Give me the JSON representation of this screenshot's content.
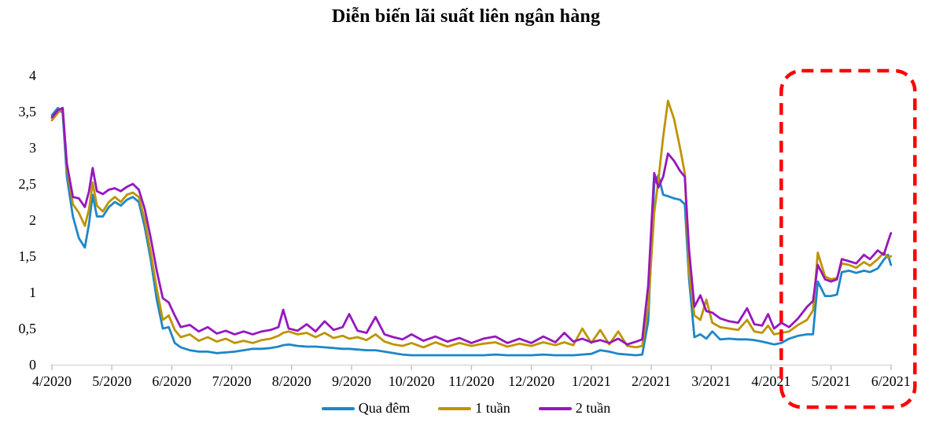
{
  "chart_data": {
    "type": "line",
    "title": "Diễn biến lãi suất liên ngân hàng",
    "xlabel": "",
    "ylabel": "",
    "ylim": [
      0,
      4
    ],
    "grid": "off",
    "legend_position": "bottom",
    "categories": [
      "4/2020",
      "5/2020",
      "6/2020",
      "7/2020",
      "8/2020",
      "9/2020",
      "10/2020",
      "11/2020",
      "12/2020",
      "1/2021",
      "2/2021",
      "3/2021",
      "4/2021",
      "5/2021",
      "6/2021"
    ],
    "ytick_values": [
      0,
      0.5,
      1,
      1.5,
      2,
      2.5,
      3,
      3.5,
      4
    ],
    "ytick_labels": [
      "0",
      "0,5",
      "1",
      "1,5",
      "2",
      "2,5",
      "3",
      "3,5",
      "4"
    ],
    "x_months": [
      0.0,
      0.1,
      0.18,
      0.25,
      0.35,
      0.45,
      0.55,
      0.62,
      0.68,
      0.75,
      0.85,
      0.95,
      1.05,
      1.15,
      1.25,
      1.35,
      1.45,
      1.55,
      1.65,
      1.75,
      1.85,
      1.95,
      2.05,
      2.15,
      2.3,
      2.45,
      2.6,
      2.75,
      2.9,
      3.05,
      3.2,
      3.35,
      3.5,
      3.65,
      3.78,
      3.86,
      3.95,
      4.1,
      4.25,
      4.4,
      4.55,
      4.7,
      4.85,
      4.96,
      5.1,
      5.25,
      5.4,
      5.55,
      5.7,
      5.85,
      6.0,
      6.2,
      6.4,
      6.6,
      6.8,
      7.0,
      7.2,
      7.4,
      7.6,
      7.8,
      8.0,
      8.2,
      8.4,
      8.55,
      8.7,
      8.85,
      9.0,
      9.15,
      9.3,
      9.45,
      9.6,
      9.75,
      9.85,
      9.95,
      10.05,
      10.12,
      10.2,
      10.28,
      10.38,
      10.48,
      10.56,
      10.63,
      10.72,
      10.82,
      10.92,
      11.02,
      11.15,
      11.3,
      11.45,
      11.6,
      11.72,
      11.85,
      11.95,
      12.05,
      12.17,
      12.3,
      12.45,
      12.6,
      12.7,
      12.78,
      12.9,
      13.0,
      13.1,
      13.18,
      13.3,
      13.42,
      13.55,
      13.65,
      13.78,
      13.88,
      13.95,
      14.0
    ],
    "series": [
      {
        "name": "Qua đêm",
        "color": "#1C87C9",
        "values": [
          3.45,
          3.55,
          3.48,
          2.6,
          2.05,
          1.75,
          1.62,
          1.95,
          2.35,
          2.05,
          2.05,
          2.18,
          2.25,
          2.2,
          2.28,
          2.32,
          2.25,
          1.9,
          1.45,
          0.9,
          0.5,
          0.52,
          0.3,
          0.24,
          0.2,
          0.18,
          0.18,
          0.16,
          0.17,
          0.18,
          0.2,
          0.22,
          0.22,
          0.23,
          0.25,
          0.27,
          0.28,
          0.26,
          0.25,
          0.25,
          0.24,
          0.23,
          0.22,
          0.22,
          0.21,
          0.2,
          0.2,
          0.18,
          0.16,
          0.14,
          0.13,
          0.13,
          0.13,
          0.13,
          0.13,
          0.13,
          0.13,
          0.14,
          0.13,
          0.13,
          0.13,
          0.14,
          0.13,
          0.13,
          0.13,
          0.14,
          0.15,
          0.2,
          0.18,
          0.15,
          0.14,
          0.13,
          0.14,
          0.6,
          2.5,
          2.62,
          2.35,
          2.33,
          2.3,
          2.28,
          2.22,
          1.2,
          0.38,
          0.42,
          0.36,
          0.46,
          0.35,
          0.36,
          0.35,
          0.35,
          0.34,
          0.32,
          0.3,
          0.28,
          0.3,
          0.36,
          0.4,
          0.42,
          0.42,
          1.15,
          0.95,
          0.95,
          0.97,
          1.28,
          1.3,
          1.27,
          1.3,
          1.28,
          1.33,
          1.45,
          1.52,
          1.38
        ]
      },
      {
        "name": "1 tuần",
        "color": "#BD9400",
        "values": [
          3.38,
          3.48,
          3.55,
          2.72,
          2.22,
          2.1,
          1.92,
          2.15,
          2.52,
          2.2,
          2.12,
          2.25,
          2.32,
          2.25,
          2.35,
          2.38,
          2.32,
          2.0,
          1.55,
          1.05,
          0.62,
          0.68,
          0.48,
          0.38,
          0.42,
          0.33,
          0.38,
          0.32,
          0.36,
          0.3,
          0.33,
          0.3,
          0.34,
          0.36,
          0.4,
          0.44,
          0.46,
          0.42,
          0.44,
          0.38,
          0.44,
          0.37,
          0.4,
          0.36,
          0.38,
          0.34,
          0.42,
          0.32,
          0.28,
          0.26,
          0.3,
          0.24,
          0.31,
          0.25,
          0.3,
          0.26,
          0.29,
          0.31,
          0.25,
          0.29,
          0.26,
          0.31,
          0.27,
          0.31,
          0.27,
          0.5,
          0.3,
          0.48,
          0.28,
          0.46,
          0.26,
          0.24,
          0.26,
          0.8,
          2.1,
          2.55,
          3.15,
          3.65,
          3.4,
          3.0,
          2.65,
          1.3,
          0.68,
          0.62,
          0.9,
          0.58,
          0.52,
          0.5,
          0.48,
          0.62,
          0.46,
          0.44,
          0.54,
          0.42,
          0.44,
          0.46,
          0.55,
          0.62,
          0.75,
          1.55,
          1.22,
          1.18,
          1.2,
          1.4,
          1.38,
          1.34,
          1.42,
          1.37,
          1.46,
          1.55,
          1.48,
          1.5
        ]
      },
      {
        "name": "2 tuần",
        "color": "#9617BE",
        "values": [
          3.42,
          3.52,
          3.55,
          2.78,
          2.32,
          2.3,
          2.18,
          2.4,
          2.72,
          2.4,
          2.36,
          2.42,
          2.44,
          2.4,
          2.46,
          2.5,
          2.42,
          2.15,
          1.75,
          1.3,
          0.92,
          0.86,
          0.68,
          0.52,
          0.55,
          0.46,
          0.52,
          0.43,
          0.47,
          0.42,
          0.46,
          0.42,
          0.46,
          0.48,
          0.52,
          0.76,
          0.5,
          0.47,
          0.56,
          0.46,
          0.6,
          0.48,
          0.52,
          0.7,
          0.47,
          0.44,
          0.66,
          0.42,
          0.38,
          0.35,
          0.42,
          0.33,
          0.39,
          0.32,
          0.37,
          0.3,
          0.36,
          0.39,
          0.3,
          0.36,
          0.3,
          0.39,
          0.31,
          0.44,
          0.32,
          0.36,
          0.31,
          0.34,
          0.3,
          0.36,
          0.28,
          0.32,
          0.35,
          1.1,
          2.65,
          2.45,
          2.6,
          2.92,
          2.82,
          2.68,
          2.6,
          1.6,
          0.8,
          0.96,
          0.74,
          0.72,
          0.64,
          0.6,
          0.58,
          0.78,
          0.56,
          0.54,
          0.7,
          0.5,
          0.58,
          0.52,
          0.64,
          0.8,
          0.88,
          1.38,
          1.18,
          1.15,
          1.18,
          1.46,
          1.43,
          1.4,
          1.52,
          1.46,
          1.58,
          1.52,
          1.7,
          1.82
        ]
      }
    ],
    "highlight_box": {
      "style": "dashed-rounded-rect",
      "color": "#FF0000",
      "x_from_month": 12.17,
      "x_to_month": 14.4
    },
    "axis": {
      "line_color": "#D9D9D9",
      "tick_color": "#BFBFBF"
    }
  }
}
